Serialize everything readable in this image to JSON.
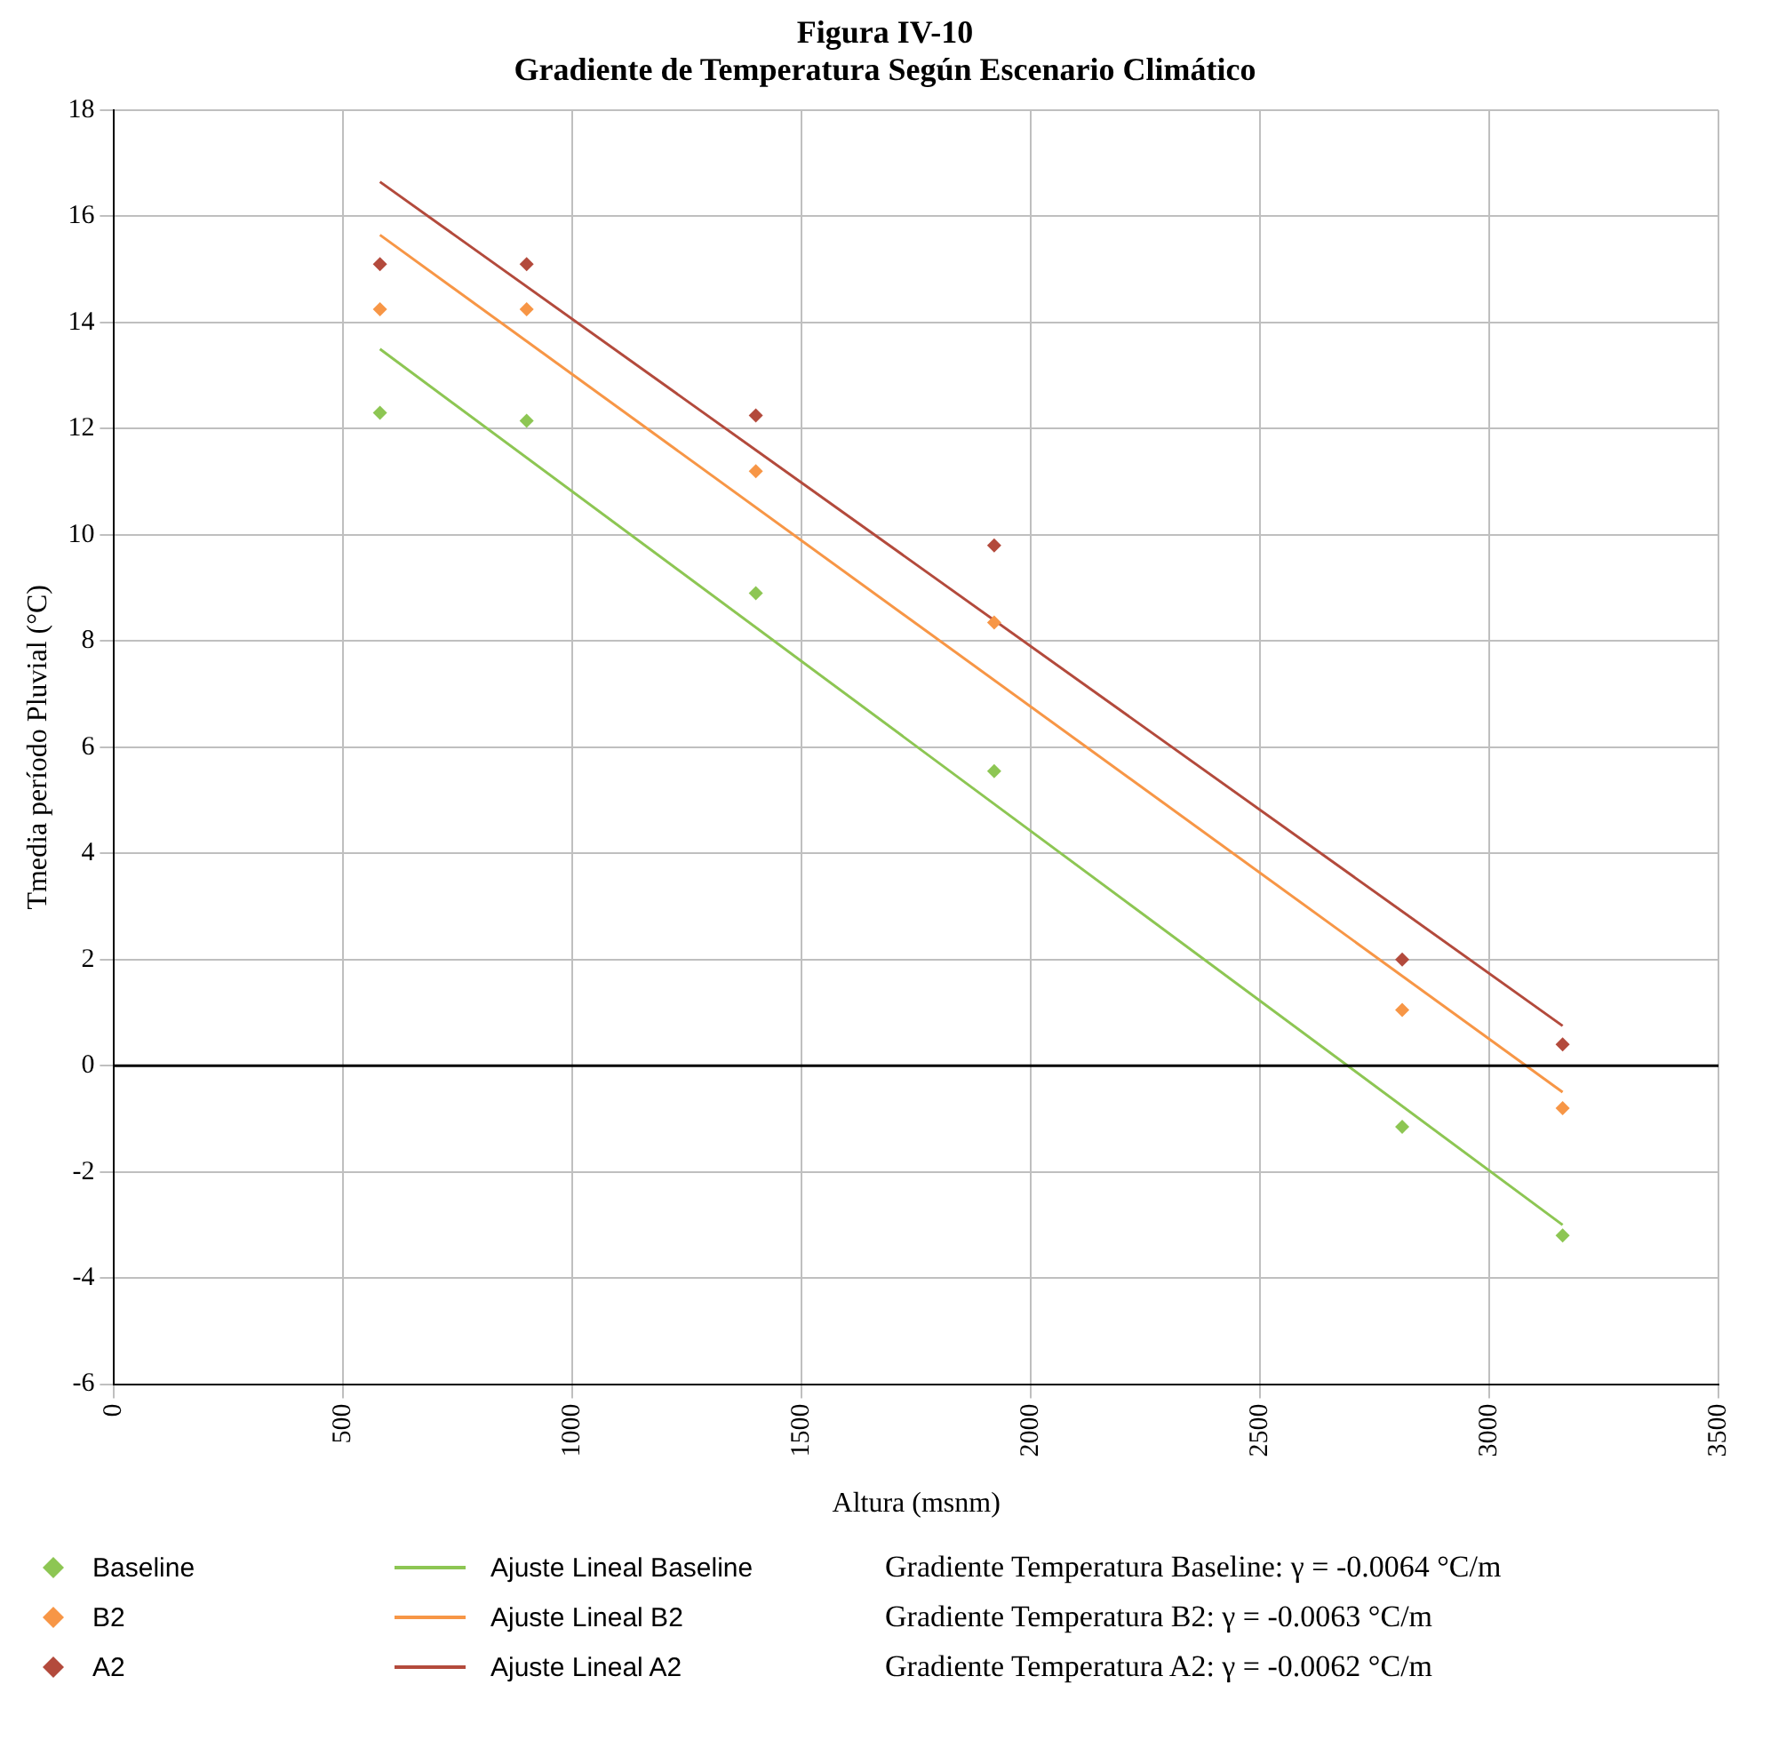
{
  "chart_data": {
    "type": "scatter",
    "title": "Figura IV-10",
    "subtitle": "Gradiente de Temperatura Según Escenario Climático",
    "xlabel": "Altura (msnm)",
    "ylabel": "Tmedia período Pluvial (°C)",
    "xlim": [
      0,
      3500
    ],
    "xticks": [
      0,
      500,
      1000,
      1500,
      2000,
      2500,
      3000,
      3500
    ],
    "ylim": [
      -6,
      18
    ],
    "yticks": [
      -6,
      -4,
      -2,
      0,
      2,
      4,
      6,
      8,
      10,
      12,
      14,
      16,
      18
    ],
    "grid": true,
    "legend": "bottom",
    "ref_lines": [
      {
        "axis": "y",
        "value": 0,
        "color": "#000000"
      }
    ],
    "series": [
      {
        "name": "Baseline",
        "type": "scatter",
        "marker": "diamond",
        "color": "#8dc653",
        "x": [
          580,
          900,
          1400,
          1920,
          2810,
          3160
        ],
        "values": [
          12.3,
          12.15,
          8.9,
          5.55,
          -1.15,
          -3.2
        ]
      },
      {
        "name": "B2",
        "type": "scatter",
        "marker": "diamond",
        "color": "#f79646",
        "x": [
          580,
          900,
          1400,
          1920,
          2810,
          3160
        ],
        "values": [
          14.25,
          14.25,
          11.2,
          8.35,
          1.05,
          -0.8
        ]
      },
      {
        "name": "A2",
        "type": "scatter",
        "marker": "diamond",
        "color": "#b34a3c",
        "x": [
          580,
          900,
          1400,
          1920,
          2810,
          3160
        ],
        "values": [
          15.1,
          15.1,
          12.25,
          9.8,
          2.0,
          0.4
        ]
      },
      {
        "name": "Ajuste Lineal Baseline",
        "type": "line",
        "marker": "none",
        "color": "#8dc653",
        "x": [
          580,
          3160
        ],
        "values": [
          13.5,
          -3.0
        ]
      },
      {
        "name": "Ajuste Lineal B2",
        "type": "line",
        "marker": "none",
        "color": "#f79646",
        "x": [
          580,
          3160
        ],
        "values": [
          15.65,
          -0.5
        ]
      },
      {
        "name": "Ajuste Lineal A2",
        "type": "line",
        "marker": "none",
        "color": "#b34a3c",
        "x": [
          580,
          3160
        ],
        "values": [
          16.65,
          0.75
        ]
      }
    ],
    "annotations": [
      "Gradiente Temperatura Baseline: γ = -0.0064 °C/m",
      "Gradiente Temperatura B2: γ = -0.0063 °C/m",
      "Gradiente Temperatura A2: γ = -0.0062 °C/m"
    ]
  }
}
